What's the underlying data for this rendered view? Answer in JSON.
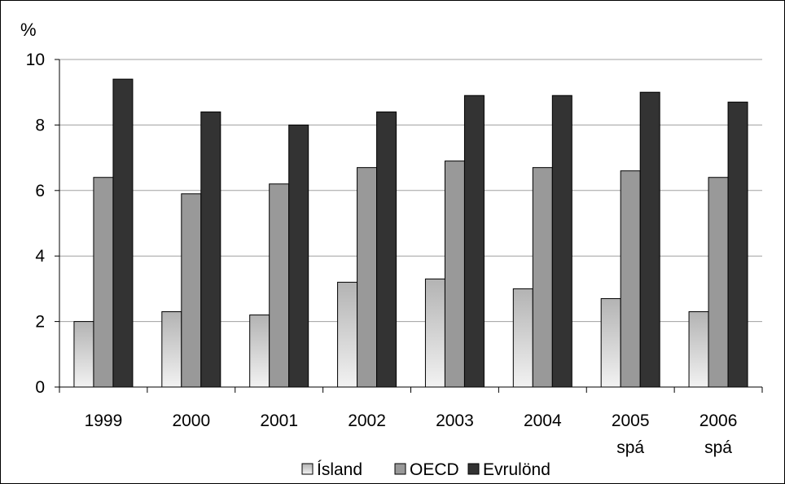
{
  "chart_data": {
    "type": "bar",
    "unit_label": "%",
    "categories": [
      "1999",
      "2000",
      "2001",
      "2002",
      "2003",
      "2004",
      "2005",
      "2006"
    ],
    "category_sublabels": [
      "",
      "",
      "",
      "",
      "",
      "",
      "spá",
      "spá"
    ],
    "series": [
      {
        "name": "Ísland",
        "values": [
          2.0,
          2.3,
          2.2,
          3.2,
          3.3,
          3.0,
          2.7,
          2.3
        ],
        "color": "#e6e6e6"
      },
      {
        "name": "OECD",
        "values": [
          6.4,
          5.9,
          6.2,
          6.7,
          6.9,
          6.7,
          6.6,
          6.4
        ],
        "color": "#999999"
      },
      {
        "name": "Evrulönd",
        "values": [
          9.4,
          8.4,
          8.0,
          8.4,
          8.9,
          8.9,
          9.0,
          8.7
        ],
        "color": "#333333"
      }
    ],
    "ylim": [
      0,
      10
    ],
    "yticks": [
      0,
      2,
      4,
      6,
      8,
      10
    ],
    "grid": true,
    "legend_position": "bottom"
  }
}
